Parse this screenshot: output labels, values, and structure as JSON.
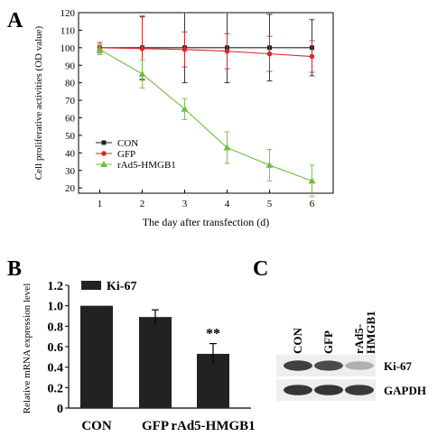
{
  "figure": {
    "panel_a_label": "A",
    "panel_b_label": "B",
    "panel_c_label": "C"
  },
  "chart_data": [
    {
      "panel": "A",
      "type": "line",
      "xlabel": "The day after transfection (d)",
      "ylabel": "Cell proliferative activities (OD value)",
      "x": [
        1,
        2,
        3,
        4,
        5,
        6
      ],
      "xlim": [
        0.5,
        6.5
      ],
      "ylim": [
        17,
        120
      ],
      "yticks": [
        20,
        30,
        40,
        50,
        60,
        70,
        80,
        90,
        100,
        110,
        120
      ],
      "xticks": [
        1,
        2,
        3,
        4,
        5,
        6
      ],
      "grid": false,
      "legend_position": "lower-left",
      "series": [
        {
          "name": "CON",
          "color": "#222222",
          "marker": "square",
          "values": [
            100,
            100,
            100,
            100,
            100,
            100
          ],
          "errors": [
            2,
            18,
            20,
            20,
            19,
            16
          ]
        },
        {
          "name": "GFP",
          "color": "#d62a2a",
          "marker": "circle",
          "values": [
            100,
            99.5,
            99,
            98,
            96.5,
            95
          ],
          "errors": [
            3,
            18,
            10,
            10,
            10,
            9
          ]
        },
        {
          "name": "rAd5-HMGB1",
          "color": "#6fbf3f",
          "marker": "triangle",
          "values": [
            99,
            85,
            65,
            43,
            33,
            24
          ],
          "errors": [
            3,
            8,
            6,
            9,
            9,
            9
          ]
        }
      ]
    },
    {
      "panel": "B",
      "type": "bar",
      "ylabel": "Relative mRNA expression level",
      "categories": [
        "CON",
        "GFP",
        "rAd5-HMGB1"
      ],
      "values": [
        1.0,
        0.89,
        0.53
      ],
      "errors": [
        0,
        0.07,
        0.1
      ],
      "ylim": [
        0,
        1.2
      ],
      "yticks": [
        "0",
        "0.2",
        "0.4",
        "0.6",
        "0.8",
        "1.0",
        "1.2"
      ],
      "legend": "Ki-67",
      "bar_color": "#222222",
      "annotation": "**"
    }
  ],
  "western_blot": {
    "lane_labels": [
      "CON",
      "GFP",
      "rAd5-\nHMGB1"
    ],
    "lane_label_lines": [
      [
        "CON"
      ],
      [
        "GFP"
      ],
      [
        "rAd5-",
        "HMGB1"
      ]
    ],
    "rows": [
      {
        "label": "Ki-67",
        "intensities": [
          0.85,
          0.8,
          0.35
        ]
      },
      {
        "label": "GAPDH",
        "intensities": [
          0.9,
          0.9,
          0.88
        ]
      }
    ]
  }
}
